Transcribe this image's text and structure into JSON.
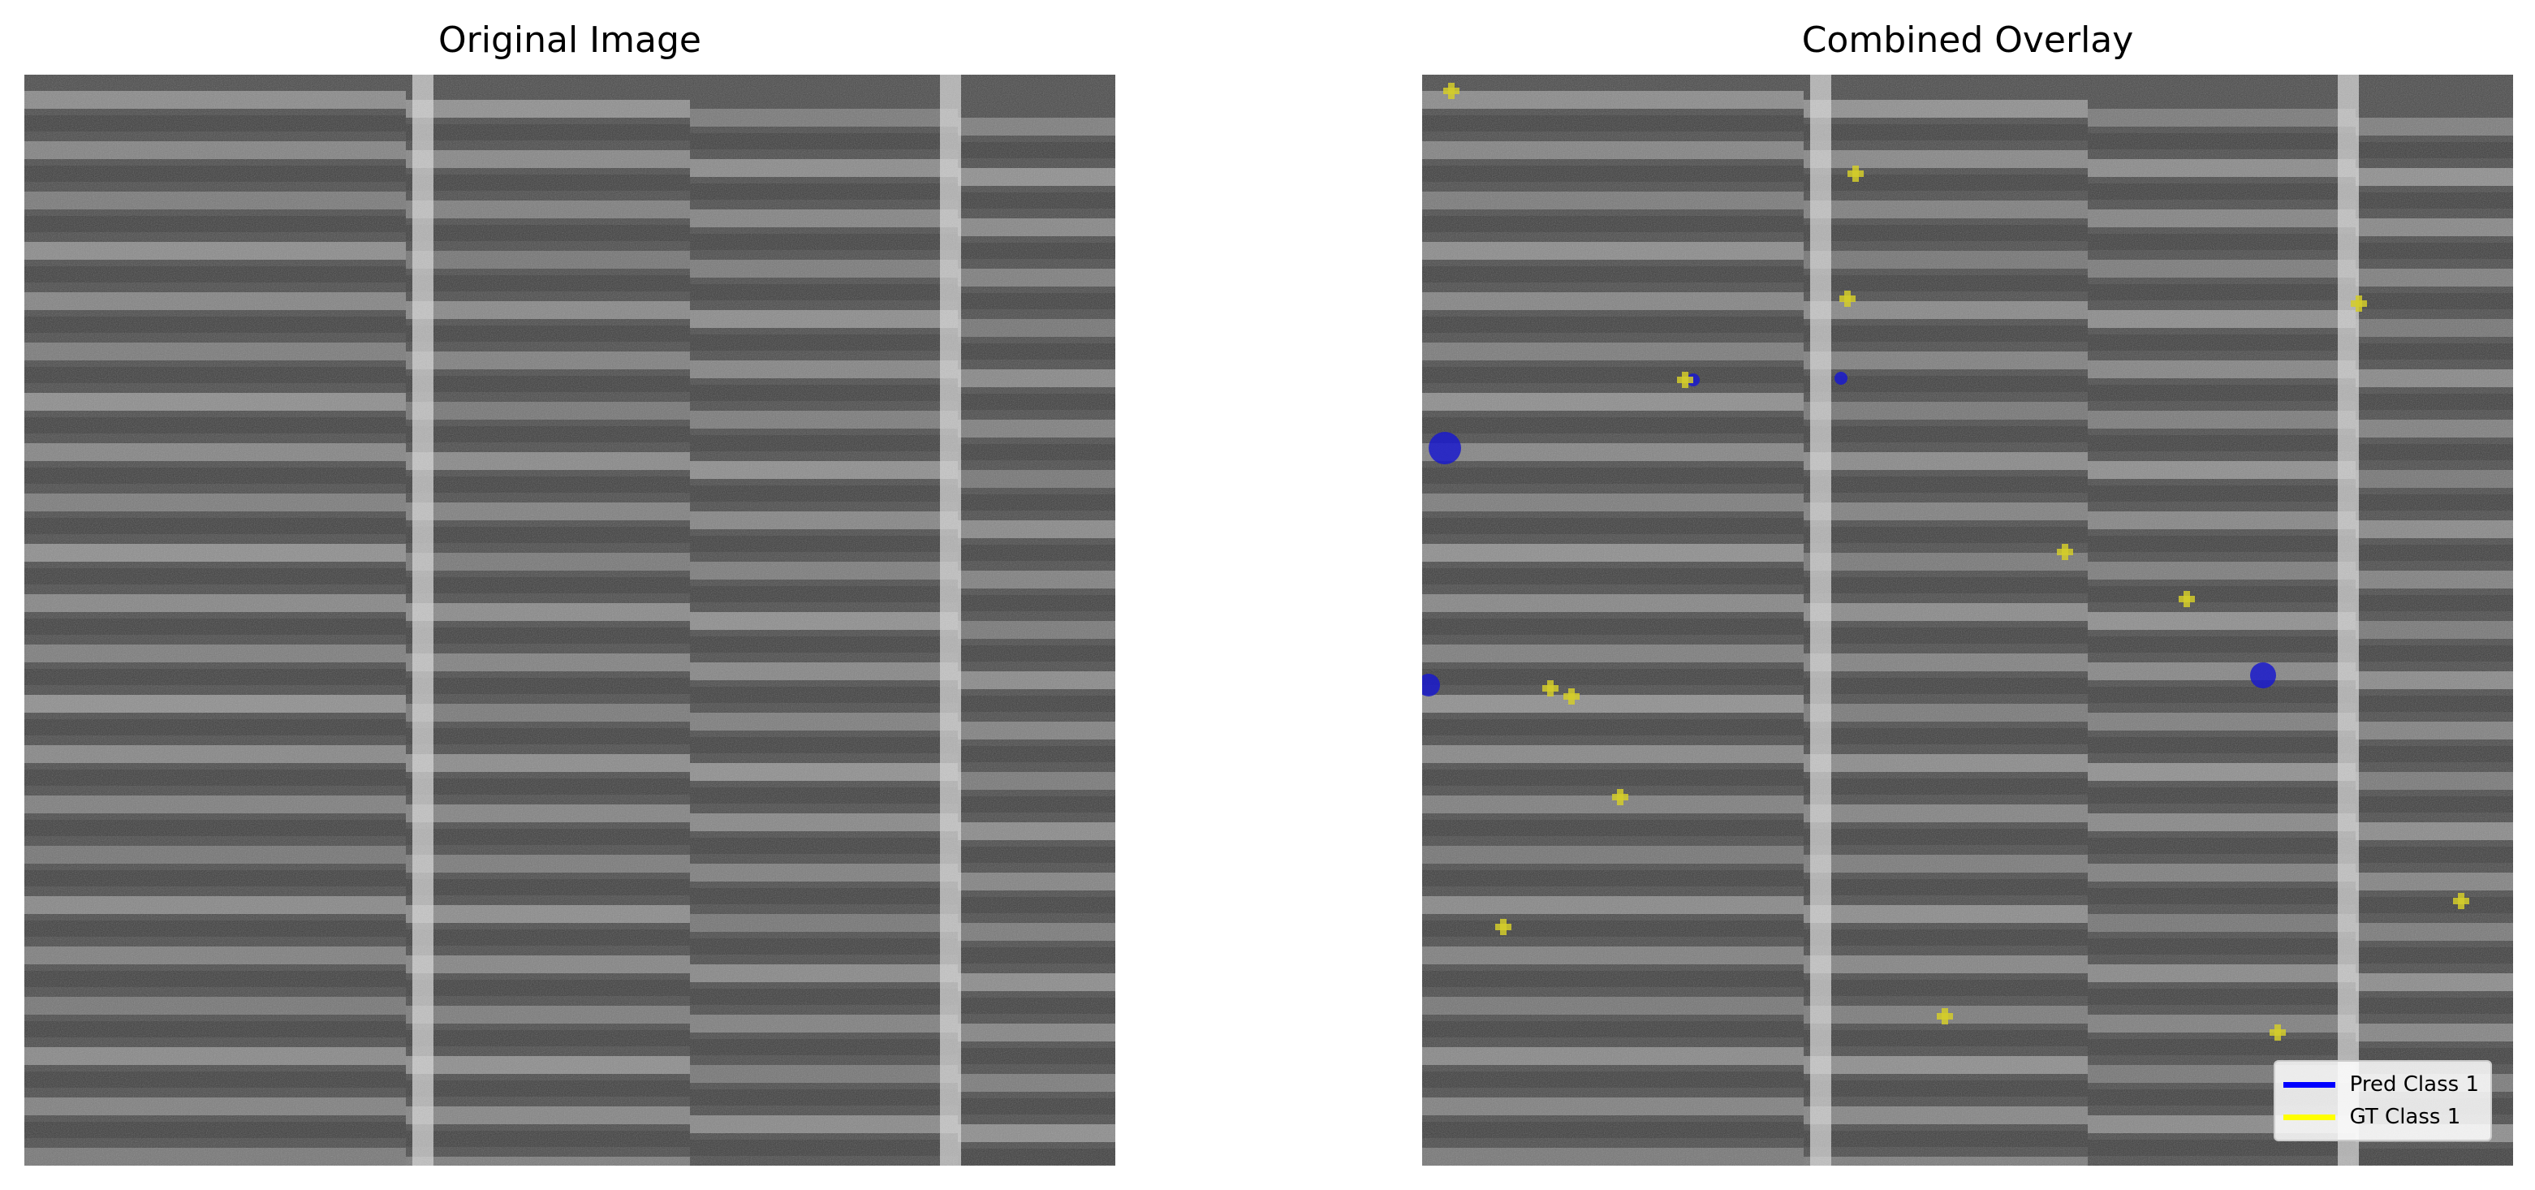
{
  "panels": [
    {
      "title": "Original Image"
    },
    {
      "title": "Combined Overlay"
    }
  ],
  "legend": {
    "items": [
      {
        "label": "Pred Class 1",
        "color": "#0000ff"
      },
      {
        "label": "GT Class 1",
        "color": "#ffff00"
      }
    ]
  },
  "colors": {
    "pred": "#1a1acc",
    "gt": "#d4cc2a"
  }
}
